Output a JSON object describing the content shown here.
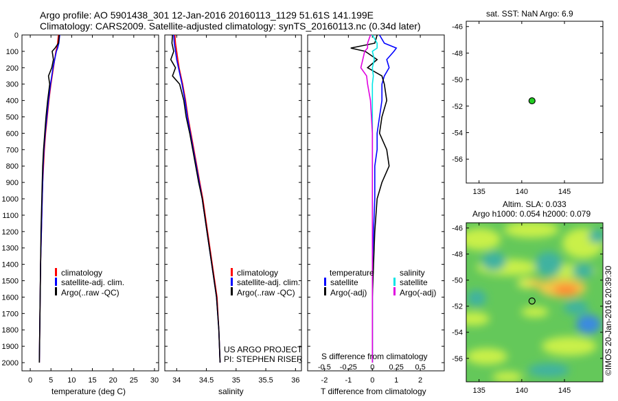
{
  "header": {
    "line1": "Argo profile: AO 5901438_301 12-Jan-2016 20160113_1129 51.61S 141.199E",
    "line2": "Climatology: CARS2009. Satellite-adjusted climatology: synTS_20160113.nc (0.34d later)"
  },
  "colors": {
    "climatology": "#ff0000",
    "satellite": "#0000ff",
    "argo": "#000000",
    "sal_satellite": "#00e5e5",
    "sal_argo": "#e000e0",
    "argo_marker": "#22cc22"
  },
  "depth_axis": {
    "min": 0,
    "max": 2050,
    "ticks": [
      "0",
      "100",
      "200",
      "300",
      "400",
      "500",
      "600",
      "700",
      "800",
      "900",
      "1000",
      "1100",
      "1200",
      "1300",
      "1400",
      "1500",
      "1600",
      "1700",
      "1800",
      "1900",
      "2000"
    ]
  },
  "chart_data": [
    {
      "type": "line",
      "id": "temperature",
      "xlabel": "temperature (deg C)",
      "xlim": [
        -2,
        31
      ],
      "xticks": [
        "0",
        "5",
        "10",
        "15",
        "20",
        "25",
        "30"
      ],
      "ylim": [
        2050,
        0
      ],
      "legend": {
        "climatology": "climatology",
        "satellite": "satellite-adj. clim.",
        "argo": "Argo(..raw -QC)"
      },
      "depth": [
        0,
        50,
        80,
        100,
        150,
        200,
        250,
        300,
        400,
        500,
        600,
        700,
        800,
        900,
        1000,
        1200,
        1400,
        1600,
        1800,
        2000
      ],
      "series": [
        {
          "name": "climatology",
          "values": [
            6.8,
            6.6,
            6.4,
            6.2,
            5.9,
            5.6,
            5.3,
            5.0,
            4.5,
            4.1,
            3.7,
            3.4,
            3.2,
            3.0,
            2.9,
            2.7,
            2.5,
            2.4,
            2.3,
            2.2
          ]
        },
        {
          "name": "satellite-adj. clim.",
          "values": [
            7.1,
            6.9,
            6.6,
            6.3,
            5.9,
            5.5,
            5.2,
            4.9,
            4.4,
            4.0,
            3.6,
            3.3,
            3.1,
            3.0,
            2.9,
            2.7,
            2.5,
            2.4,
            2.3,
            2.2
          ]
        },
        {
          "name": "Argo(..raw -QC)",
          "values": [
            7.0,
            6.8,
            6.0,
            5.3,
            5.6,
            5.2,
            4.4,
            4.7,
            4.2,
            3.8,
            3.5,
            3.2,
            3.0,
            2.9,
            2.8,
            2.6,
            2.5,
            2.4,
            2.3,
            2.2
          ]
        }
      ]
    },
    {
      "type": "line",
      "id": "salinity",
      "xlabel": "salinity",
      "xlim": [
        33.8,
        36.1
      ],
      "xticks": [
        "34",
        "34.5",
        "35",
        "35.5",
        "36"
      ],
      "ylim": [
        2050,
        0
      ],
      "legend": {
        "climatology": "climatology",
        "satellite": "satellite-adj. clim.",
        "argo": "Argo(..raw -QC)"
      },
      "depth": [
        0,
        50,
        100,
        150,
        200,
        250,
        300,
        400,
        500,
        600,
        700,
        800,
        900,
        1000,
        1200,
        1400,
        1600,
        1800,
        2000
      ],
      "series": [
        {
          "name": "climatology",
          "values": [
            33.97,
            33.98,
            34.0,
            34.02,
            34.04,
            34.07,
            34.1,
            34.15,
            34.19,
            34.24,
            34.29,
            34.34,
            34.39,
            34.44,
            34.52,
            34.6,
            34.68,
            34.71,
            34.73
          ]
        },
        {
          "name": "satellite-adj. clim.",
          "values": [
            33.95,
            33.96,
            33.98,
            34.0,
            34.03,
            34.06,
            34.09,
            34.14,
            34.18,
            34.23,
            34.28,
            34.33,
            34.38,
            34.43,
            34.51,
            34.59,
            34.67,
            34.71,
            34.73
          ]
        },
        {
          "name": "Argo(..raw -QC)",
          "values": [
            33.93,
            33.92,
            33.95,
            33.9,
            33.98,
            33.93,
            34.05,
            34.12,
            34.16,
            34.22,
            34.27,
            34.32,
            34.37,
            34.43,
            34.51,
            34.59,
            34.67,
            34.71,
            34.73
          ]
        }
      ]
    },
    {
      "type": "line",
      "id": "difference",
      "xlabel": "T difference from climatology",
      "xlabel_top": "S difference from climatology",
      "xlim": [
        -2.7,
        3.0
      ],
      "xticks": [
        "-2",
        "-1",
        "0",
        "1",
        "2"
      ],
      "xticks_top": [
        "-0.5",
        "-0.25",
        "0",
        "0.25",
        "0.5"
      ],
      "ylim": [
        2050,
        0
      ],
      "legend": {
        "temp_header": "temperature",
        "sal_header": "salinity",
        "satellite": "satellite",
        "argo": "Argo(-adj)"
      },
      "depth": [
        0,
        50,
        80,
        100,
        150,
        200,
        250,
        300,
        400,
        500,
        600,
        700,
        800,
        900,
        1000,
        1200,
        1400,
        1600,
        1800,
        2000
      ],
      "series": [
        {
          "name": "temperature satellite",
          "values": [
            0.3,
            0.5,
            1.0,
            0.9,
            0.6,
            0.7,
            0.5,
            0.4,
            0.4,
            0.3,
            0.2,
            0.2,
            0.1,
            0.1,
            0.1,
            0.05,
            0.0,
            0.0,
            0.0,
            0.0
          ]
        },
        {
          "name": "temperature Argo(-adj)",
          "values": [
            0.2,
            0.1,
            -0.9,
            -0.3,
            0.2,
            -0.2,
            0.4,
            0.5,
            0.6,
            0.4,
            0.3,
            0.6,
            0.7,
            0.4,
            0.2,
            0.1,
            0.05,
            0.0,
            0.0,
            0.0
          ]
        },
        {
          "name": "salinity satellite",
          "values": [
            0.0,
            0.05,
            0.05,
            0.0,
            0.02,
            0.0,
            0.01,
            0.0,
            0.0,
            0.0,
            0.0,
            0.0,
            0.0,
            0.0,
            0.0,
            0.0,
            0.0,
            0.0,
            0.0,
            0.0
          ]
        },
        {
          "name": "salinity Argo(-adj)",
          "values": [
            -0.02,
            -0.05,
            -0.05,
            -0.08,
            -0.1,
            -0.12,
            -0.06,
            -0.05,
            -0.02,
            -0.01,
            0.0,
            0.0,
            0.0,
            0.0,
            0.0,
            0.0,
            0.0,
            0.0,
            0.0,
            0.0
          ]
        }
      ]
    },
    {
      "type": "scatter",
      "id": "sst_map",
      "title": "sat. SST: NaN Argo: 6.9",
      "xlim": [
        133.5,
        149.5
      ],
      "ylim": [
        -57.8,
        -45.6
      ],
      "xticks": [
        "135",
        "140",
        "145"
      ],
      "yticks": [
        "-46",
        "-48",
        "-50",
        "-52",
        "-54",
        "-56"
      ],
      "points": [
        {
          "x": 141.2,
          "y": -51.6
        }
      ]
    },
    {
      "type": "heatmap",
      "id": "sla_map",
      "title_line1": "Altim. SLA: 0.033",
      "title_line2": "Argo h1000: 0.054 h2000: 0.079",
      "xlim": [
        133.5,
        149.5
      ],
      "ylim": [
        -57.8,
        -45.6
      ],
      "xticks": [
        "135",
        "140",
        "145"
      ],
      "yticks": [
        "-46",
        "-48",
        "-50",
        "-52",
        "-54",
        "-56"
      ],
      "points": [
        {
          "x": 141.2,
          "y": -51.6
        }
      ]
    }
  ],
  "credits": {
    "project": "US ARGO PROJECT",
    "pi": "PI: STEPHEN RISER",
    "imos": "©IMOS 20-Jan-2016 20:39:30"
  }
}
